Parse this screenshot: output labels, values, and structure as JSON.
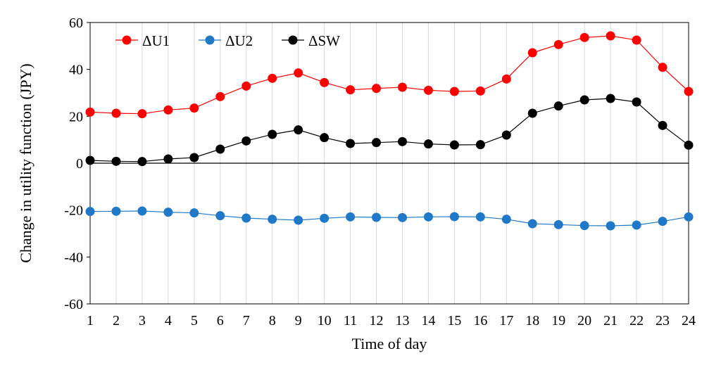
{
  "chart_data": {
    "type": "line",
    "xlabel": "Time of day",
    "ylabel": "Change in utility function (JPY)",
    "x": [
      1,
      2,
      3,
      4,
      5,
      6,
      7,
      8,
      9,
      10,
      11,
      12,
      13,
      14,
      15,
      16,
      17,
      18,
      19,
      20,
      21,
      22,
      23,
      24
    ],
    "x_ticks": [
      "1",
      "2",
      "3",
      "4",
      "5",
      "6",
      "7",
      "8",
      "9",
      "10",
      "11",
      "12",
      "13",
      "14",
      "15",
      "16",
      "17",
      "18",
      "19",
      "20",
      "21",
      "22",
      "23",
      "24"
    ],
    "ylim": [
      -60,
      60
    ],
    "y_ticks": [
      "60",
      "40",
      "20",
      "0",
      "-20",
      "-40",
      "-60"
    ],
    "y_tick_values": [
      60,
      40,
      20,
      0,
      -20,
      -40,
      -60
    ],
    "grid": "vertical",
    "legend_position": "top-left",
    "series": [
      {
        "name": "ΔU1",
        "color": "#ff0000",
        "values": [
          21.8,
          21.3,
          21.1,
          22.7,
          23.5,
          28.4,
          32.9,
          36.2,
          38.5,
          34.4,
          31.3,
          31.9,
          32.4,
          31.1,
          30.6,
          30.8,
          35.9,
          47.1,
          50.6,
          53.6,
          54.3,
          52.5,
          40.9,
          30.6
        ]
      },
      {
        "name": "ΔU2",
        "color": "#1f78c8",
        "values": [
          -20.6,
          -20.5,
          -20.4,
          -20.9,
          -21.2,
          -22.4,
          -23.4,
          -23.9,
          -24.3,
          -23.5,
          -22.9,
          -23.1,
          -23.2,
          -22.9,
          -22.8,
          -22.9,
          -23.9,
          -25.8,
          -26.2,
          -26.6,
          -26.7,
          -26.4,
          -24.8,
          -22.9
        ]
      },
      {
        "name": "ΔSW",
        "color": "#000000",
        "values": [
          1.2,
          0.8,
          0.7,
          1.8,
          2.4,
          6.0,
          9.5,
          12.3,
          14.2,
          10.9,
          8.4,
          8.8,
          9.2,
          8.2,
          7.8,
          7.9,
          12.0,
          21.3,
          24.4,
          27.0,
          27.6,
          26.1,
          16.1,
          7.7
        ]
      }
    ]
  }
}
